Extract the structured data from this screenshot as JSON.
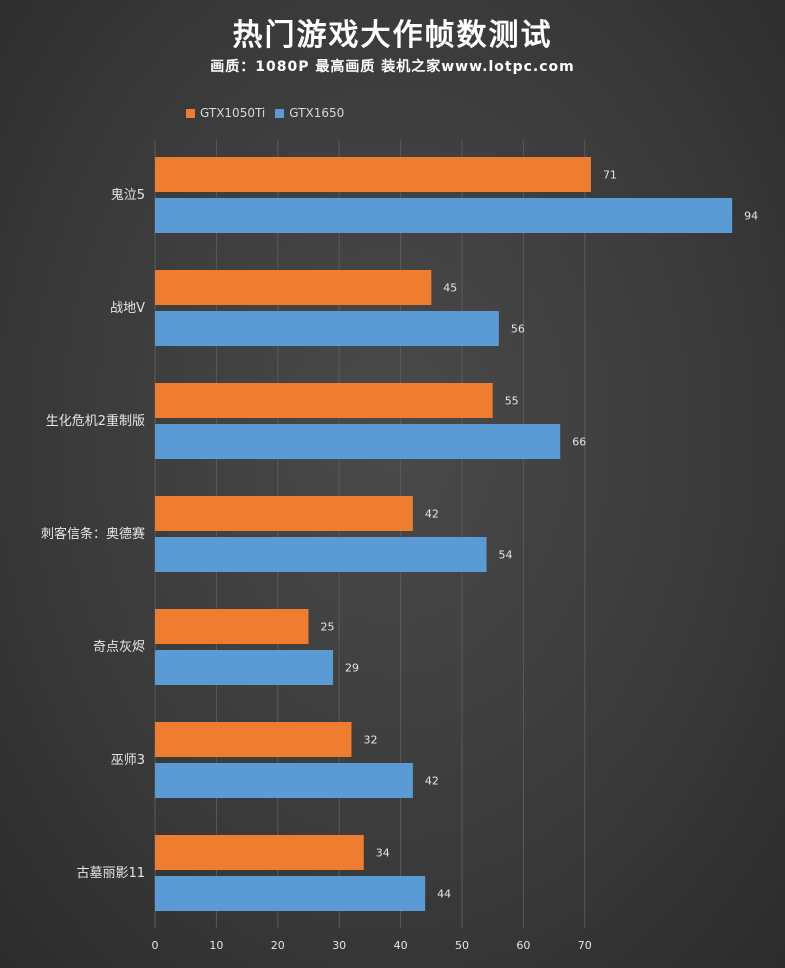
{
  "chart_data": {
    "type": "bar",
    "orientation": "horizontal",
    "title": "热门游戏大作帧数测试",
    "subtitle": "画质：1080P 最高画质 装机之家www.lotpc.com",
    "categories": [
      "鬼泣5",
      "战地V",
      "生化危机2重制版",
      "刺客信条：奥德赛",
      "奇点灰烬",
      "巫师3",
      "古墓丽影11"
    ],
    "series": [
      {
        "name": "GTX1050Ti",
        "color": "#ee7d2f",
        "values": [
          71,
          45,
          55,
          42,
          25,
          32,
          34
        ]
      },
      {
        "name": "GTX1650",
        "color": "#5b9bd5",
        "values": [
          94,
          56,
          66,
          54,
          29,
          42,
          44
        ]
      }
    ],
    "x_ticks": [
      0,
      10,
      20,
      30,
      40,
      50,
      60,
      70
    ],
    "xlim": [
      0,
      100
    ],
    "grid": true,
    "legend_position": "top-left"
  }
}
